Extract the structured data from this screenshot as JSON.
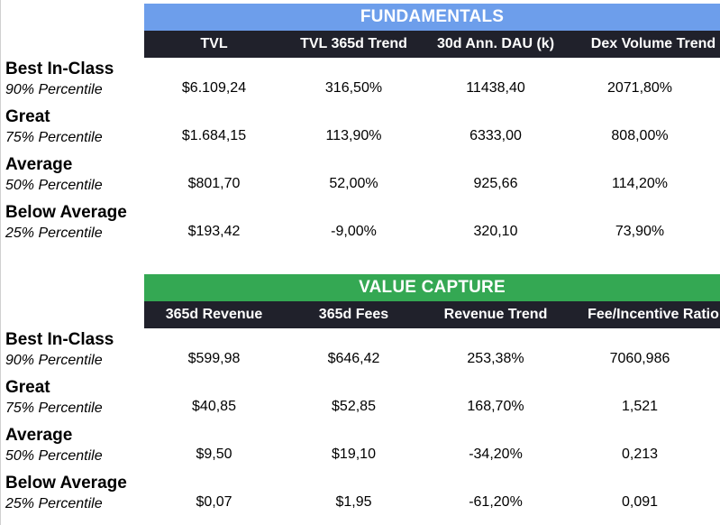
{
  "fundamentals": {
    "title": "FUNDAMENTALS",
    "columns": [
      "TVL",
      "TVL 365d Trend",
      "30d Ann. DAU (k)",
      "Dex Volume Trend"
    ],
    "rows": [
      {
        "tier": "Best In-Class",
        "percentile": "90% Percentile",
        "values": [
          "$6.109,24",
          "316,50%",
          "11438,40",
          "2071,80%"
        ]
      },
      {
        "tier": "Great",
        "percentile": "75% Percentile",
        "values": [
          "$1.684,15",
          "113,90%",
          "6333,00",
          "808,00%"
        ]
      },
      {
        "tier": "Average",
        "percentile": "50% Percentile",
        "values": [
          "$801,70",
          "52,00%",
          "925,66",
          "114,20%"
        ]
      },
      {
        "tier": "Below Average",
        "percentile": "25% Percentile",
        "values": [
          "$193,42",
          "-9,00%",
          "320,10",
          "73,90%"
        ]
      }
    ]
  },
  "value_capture": {
    "title": "VALUE CAPTURE",
    "columns": [
      "365d Revenue",
      "365d Fees",
      "Revenue Trend",
      "Fee/Incentive Ratio"
    ],
    "rows": [
      {
        "tier": "Best In-Class",
        "percentile": "90% Percentile",
        "values": [
          "$599,98",
          "$646,42",
          "253,38%",
          "7060,986"
        ]
      },
      {
        "tier": "Great",
        "percentile": "75% Percentile",
        "values": [
          "$40,85",
          "$52,85",
          "168,70%",
          "1,521"
        ]
      },
      {
        "tier": "Average",
        "percentile": "50% Percentile",
        "values": [
          "$9,50",
          "$19,10",
          "-34,20%",
          "0,213"
        ]
      },
      {
        "tier": "Below Average",
        "percentile": "25% Percentile",
        "values": [
          "$0,07",
          "$1,95",
          "-61,20%",
          "0,091"
        ]
      }
    ]
  },
  "colors": {
    "fundamentals_banner": "#6d9eeb",
    "value_capture_banner": "#34a853",
    "header_bar": "#20212b"
  }
}
